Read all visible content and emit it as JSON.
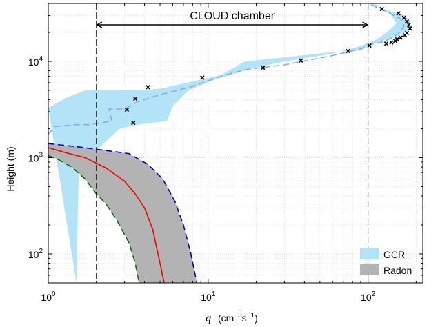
{
  "chart_data": {
    "type": "line",
    "xlabel_var": "q",
    "xlabel_unit": "(cm",
    "xlabel_exp1": "−3",
    "xlabel_mid": "s",
    "xlabel_exp2": "−1",
    "xlabel_close": ")",
    "ylabel": "Height (m)",
    "xscale": "log",
    "yscale": "log",
    "xlim": [
      1,
      220
    ],
    "ylim": [
      50,
      40000
    ],
    "grid": true,
    "legend_position": "bottom-right",
    "xticks": [
      {
        "value": 1,
        "base": "10",
        "exp": "0"
      },
      {
        "value": 10,
        "base": "10",
        "exp": "1"
      },
      {
        "value": 100,
        "base": "10",
        "exp": "2"
      }
    ],
    "yticks": [
      {
        "value": 100,
        "base": "10",
        "exp": "2"
      },
      {
        "value": 1000,
        "base": "10",
        "exp": "3"
      },
      {
        "value": 10000,
        "base": "10",
        "exp": "4"
      }
    ],
    "annotation": {
      "label": "CLOUD chamber",
      "x_start": 2,
      "x_end": 100,
      "y": 24000
    },
    "gcr_band": {
      "name": "GCR",
      "color": "#b3e3f7",
      "upper": [
        [
          1.0,
          3300
        ],
        [
          1.3,
          4200
        ],
        [
          1.7,
          5000
        ],
        [
          2.2,
          5000
        ],
        [
          3.5,
          5000
        ],
        [
          5.0,
          5200
        ],
        [
          8.0,
          6200
        ],
        [
          12,
          7200
        ],
        [
          17,
          10000
        ],
        [
          30,
          11000
        ],
        [
          60,
          12500
        ],
        [
          90,
          13000
        ],
        [
          105,
          15000
        ],
        [
          125,
          16500
        ],
        [
          155,
          18500
        ],
        [
          180,
          21000
        ],
        [
          185,
          25000
        ],
        [
          170,
          30000
        ],
        [
          140,
          33000
        ],
        [
          120,
          36000
        ],
        [
          100,
          40000
        ]
      ],
      "lower": [
        [
          110,
          40000
        ],
        [
          125,
          35000
        ],
        [
          140,
          30000
        ],
        [
          150,
          25000
        ],
        [
          140,
          22000
        ],
        [
          125,
          19000
        ],
        [
          110,
          16500
        ],
        [
          90,
          14500
        ],
        [
          60,
          12000
        ],
        [
          30,
          10000
        ],
        [
          18,
          8300
        ],
        [
          11,
          6500
        ],
        [
          7.5,
          5000
        ],
        [
          6.0,
          3400
        ],
        [
          5.5,
          2400
        ],
        [
          4.5,
          2300
        ],
        [
          3.6,
          2200
        ],
        [
          2.8,
          2000
        ],
        [
          2.0,
          1200
        ],
        [
          1.55,
          700
        ],
        [
          1.5,
          50
        ]
      ],
      "median": [
        [
          1.0,
          1750
        ],
        [
          1.1,
          2100
        ],
        [
          1.5,
          2200
        ],
        [
          1.8,
          2200
        ],
        [
          2.5,
          2400
        ],
        [
          2.4,
          3200
        ],
        [
          3.0,
          3200
        ],
        [
          3.6,
          3800
        ],
        [
          5.0,
          4500
        ],
        [
          8.0,
          5500
        ],
        [
          12,
          7000
        ],
        [
          17,
          8200
        ],
        [
          30,
          9200
        ],
        [
          60,
          11500
        ],
        [
          90,
          13500
        ],
        [
          105,
          15000
        ],
        [
          125,
          16000
        ],
        [
          145,
          18000
        ],
        [
          160,
          20500
        ],
        [
          168,
          23500
        ],
        [
          160,
          27500
        ],
        [
          140,
          31000
        ],
        [
          120,
          35000
        ],
        [
          100,
          40000
        ]
      ],
      "median_color": "#8aa9e6"
    },
    "radon_band": {
      "name": "Radon",
      "color": "#b3b3b3",
      "upper": [
        [
          1.0,
          1400
        ],
        [
          1.5,
          1300
        ],
        [
          2.2,
          1200
        ],
        [
          3.2,
          1100
        ],
        [
          4.2,
          850
        ],
        [
          5.2,
          600
        ],
        [
          6.2,
          350
        ],
        [
          7.0,
          200
        ],
        [
          7.8,
          100
        ],
        [
          8.5,
          50
        ]
      ],
      "lower": [
        [
          3.7,
          50
        ],
        [
          3.5,
          80
        ],
        [
          3.2,
          130
        ],
        [
          2.7,
          220
        ],
        [
          2.3,
          330
        ],
        [
          2.0,
          420
        ],
        [
          1.7,
          600
        ],
        [
          1.4,
          800
        ],
        [
          1.15,
          960
        ],
        [
          1.0,
          1050
        ]
      ],
      "upper_color": "#0000d0",
      "lower_color": "#007000",
      "median": [
        [
          1.0,
          1270
        ],
        [
          1.3,
          1120
        ],
        [
          1.7,
          1000
        ],
        [
          2.3,
          780
        ],
        [
          3.0,
          570
        ],
        [
          3.5,
          420
        ],
        [
          4.0,
          300
        ],
        [
          4.5,
          180
        ],
        [
          5.0,
          80
        ],
        [
          5.3,
          50
        ]
      ],
      "median_color": "#ee0000"
    },
    "observations": [
      [
        3.4,
        2300
      ],
      [
        3.1,
        3150
      ],
      [
        3.5,
        4100
      ],
      [
        4.2,
        5400
      ],
      [
        9.2,
        6800
      ],
      [
        22,
        8600
      ],
      [
        38,
        10200
      ],
      [
        75,
        12800
      ],
      [
        102,
        14600
      ],
      [
        130,
        15300
      ],
      [
        140,
        15700
      ],
      [
        148,
        16300
      ],
      [
        152,
        17000
      ],
      [
        160,
        17700
      ],
      [
        170,
        18700
      ],
      [
        175,
        19700
      ],
      [
        183,
        22000
      ],
      [
        180,
        24000
      ],
      [
        175,
        26000
      ],
      [
        168,
        28500
      ],
      [
        155,
        31500
      ],
      [
        122,
        35000
      ]
    ]
  }
}
